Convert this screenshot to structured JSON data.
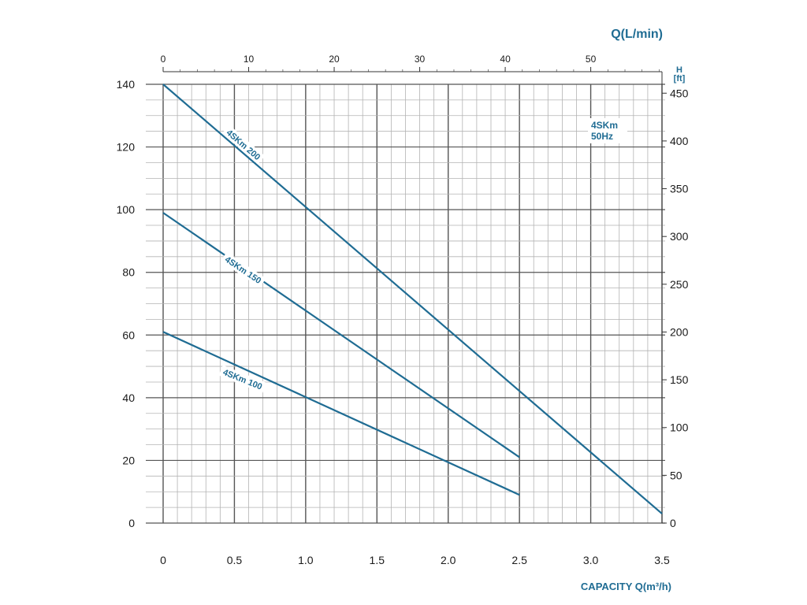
{
  "chart_data": {
    "type": "line",
    "x_axis": {
      "label": "CAPACITY Q(m³/h)",
      "range": [
        0,
        3.5
      ],
      "ticks": [
        "0",
        "0.5",
        "1.0",
        "1.5",
        "2.0",
        "2.5",
        "3.0",
        "3.5"
      ]
    },
    "x2_axis": {
      "label": "Q(L/min)",
      "range": [
        0,
        58.33
      ],
      "ticks": [
        "0",
        "10",
        "20",
        "30",
        "40",
        "50"
      ]
    },
    "y_axis": {
      "label": "",
      "range": [
        0,
        140
      ],
      "ticks": [
        "0",
        "20",
        "40",
        "60",
        "80",
        "100",
        "120",
        "140"
      ]
    },
    "y2_axis": {
      "label": "H [ft]",
      "label_lines": [
        "H",
        "[ft]"
      ],
      "range": [
        0,
        459.3
      ],
      "ticks": [
        "0",
        "50",
        "100",
        "150",
        "200",
        "250",
        "300",
        "350",
        "400",
        "450"
      ]
    },
    "grid": true,
    "annotation": [
      "4SKm",
      "50Hz"
    ],
    "series": [
      {
        "name": "4SKm 200",
        "x": [
          0,
          3.5
        ],
        "y": [
          140,
          3
        ],
        "color": "#1f6c93"
      },
      {
        "name": "4SKm 150",
        "x": [
          0,
          2.5
        ],
        "y": [
          99,
          21
        ],
        "color": "#1f6c93"
      },
      {
        "name": "4SKm 100",
        "x": [
          0,
          2.5
        ],
        "y": [
          61,
          9
        ],
        "color": "#1f6c93"
      }
    ]
  }
}
